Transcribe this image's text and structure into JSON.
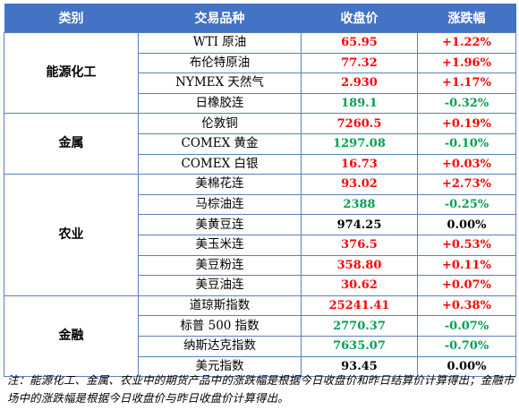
{
  "header": {
    "category": "类别",
    "product": "交易品种",
    "close": "收盘价",
    "change": "涨跌幅"
  },
  "groups": [
    {
      "category": "能源化工",
      "rows": [
        {
          "name": "WTI 原油",
          "close": "65.95",
          "change": "+1.22%",
          "dir": "up"
        },
        {
          "name": "布伦特原油",
          "close": "77.32",
          "change": "+1.96%",
          "dir": "up"
        },
        {
          "name": "NYMEX 天然气",
          "close": "2.930",
          "change": "+1.17%",
          "dir": "up"
        },
        {
          "name": "日橡胶连",
          "close": "189.1",
          "change": "-0.32%",
          "dir": "down"
        }
      ]
    },
    {
      "category": "金属",
      "rows": [
        {
          "name": "伦敦铜",
          "close": "7260.5",
          "change": "+0.19%",
          "dir": "up"
        },
        {
          "name": "COMEX 黄金",
          "close": "1297.08",
          "change": "-0.10%",
          "dir": "down"
        },
        {
          "name": "COMEX 白银",
          "close": "16.73",
          "change": "+0.03%",
          "dir": "up"
        }
      ]
    },
    {
      "category": "农业",
      "rows": [
        {
          "name": "美棉花连",
          "close": "93.02",
          "change": "+2.73%",
          "dir": "up"
        },
        {
          "name": "马棕油连",
          "close": "2388",
          "change": "-0.25%",
          "dir": "down"
        },
        {
          "name": "美黄豆连",
          "close": "974.25",
          "change": "0.00%",
          "dir": "flat"
        },
        {
          "name": "美玉米连",
          "close": "376.5",
          "change": "+0.53%",
          "dir": "up"
        },
        {
          "name": "美豆粉连",
          "close": "358.80",
          "change": "+0.11%",
          "dir": "up"
        },
        {
          "name": "美豆油连",
          "close": "30.62",
          "change": "+0.07%",
          "dir": "up"
        }
      ]
    },
    {
      "category": "金融",
      "rows": [
        {
          "name": "道琼斯指数",
          "close": "25241.41",
          "change": "+0.38%",
          "dir": "up"
        },
        {
          "name": "标普 500 指数",
          "close": "2770.37",
          "change": "-0.07%",
          "dir": "down"
        },
        {
          "name": "纳斯达克指数",
          "close": "7635.07",
          "change": "-0.70%",
          "dir": "down"
        },
        {
          "name": "美元指数",
          "close": "93.45",
          "change": "0.00%",
          "dir": "flat"
        }
      ]
    }
  ],
  "colors": {
    "header_bg": "#4472C4",
    "up": "#ff0000",
    "down": "#00a050",
    "flat": "#000000"
  },
  "note": "注：能源化工、金属、农业中的期货产品中的涨跌幅是根据今日收盘价和昨日结算价计算得出；金融市场中的涨跌幅是根据今日收盘价与昨日收盘价计算得出。"
}
